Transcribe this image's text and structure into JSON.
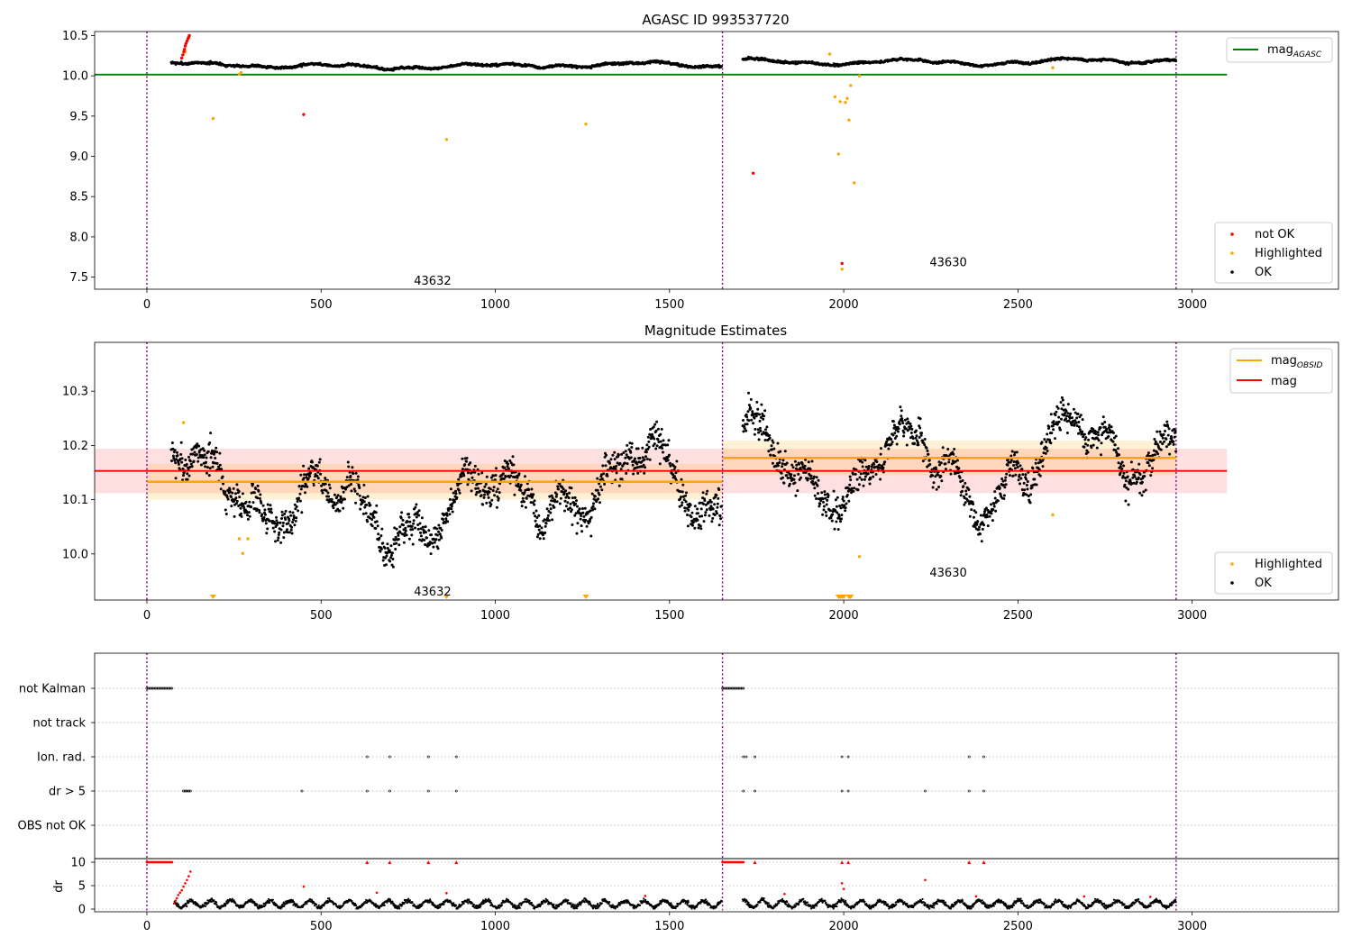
{
  "chart_data": [
    {
      "type": "scatter",
      "title": "AGASC ID 993537720",
      "xlim": [
        -150,
        3420
      ],
      "ylim": [
        7.35,
        10.55
      ],
      "xticks": [
        0,
        500,
        1000,
        1500,
        2000,
        2500,
        3000
      ],
      "yticks": [
        7.5,
        8.0,
        8.5,
        9.0,
        9.5,
        10.0,
        10.5
      ],
      "ytick_labels": [
        "7.5",
        "8.0",
        "8.5",
        "9.0",
        "9.5",
        "10.0",
        "10.5"
      ],
      "obs_boundaries": [
        0,
        1652,
        2954
      ],
      "obs_labels": [
        {
          "text": "43632",
          "x": 820,
          "y": 7.45
        },
        {
          "text": "43630",
          "x": 2300,
          "y": 7.68
        }
      ],
      "line": {
        "name": "mag_AGASC",
        "label_base": "mag",
        "label_sub": "AGASC",
        "value": 10.015,
        "x": [
          -150,
          3100
        ],
        "color": "#008000"
      },
      "ok_segments": [
        {
          "x0": 70,
          "x1": 1650,
          "center": 10.14
        },
        {
          "x0": 1710,
          "x1": 2954,
          "center": 10.18
        }
      ],
      "ok_count": 2300,
      "not_ok": {
        "x": [
          100,
          103,
          106,
          108,
          110,
          112,
          115,
          118,
          120,
          122,
          450,
          1740,
          1995
        ],
        "y": [
          10.22,
          10.26,
          10.3,
          10.33,
          10.37,
          10.4,
          10.43,
          10.46,
          10.48,
          10.5,
          9.52,
          8.79,
          7.67
        ]
      },
      "highlighted": {
        "x": [
          105,
          110,
          190,
          265,
          270,
          860,
          1260,
          1960,
          1975,
          1985,
          1990,
          1995,
          2005,
          2010,
          2015,
          2020,
          2030,
          2045,
          2600
        ],
        "y": [
          10.27,
          10.3,
          9.47,
          10.02,
          10.04,
          9.21,
          9.4,
          10.27,
          9.74,
          9.03,
          9.68,
          7.6,
          9.67,
          9.72,
          9.45,
          9.88,
          8.67,
          10.0,
          10.1
        ]
      },
      "legend": {
        "position": "upper right",
        "line_entry": "mag_AGASC"
      },
      "legend2": {
        "position": "lower right",
        "entries": [
          {
            "name": "not OK",
            "color": "#ff0000"
          },
          {
            "name": "Highlighted",
            "color": "#ffa500"
          },
          {
            "name": "OK",
            "color": "#000000"
          }
        ]
      }
    },
    {
      "type": "scatter",
      "title": "Magnitude Estimates",
      "xlim": [
        -150,
        3420
      ],
      "ylim": [
        9.915,
        10.39
      ],
      "xticks": [
        0,
        500,
        1000,
        1500,
        2000,
        2500,
        3000
      ],
      "yticks": [
        10.0,
        10.1,
        10.2,
        10.3
      ],
      "ytick_labels": [
        "10.0",
        "10.1",
        "10.2",
        "10.3"
      ],
      "obs_boundaries": [
        0,
        1652,
        2954
      ],
      "obs_labels": [
        {
          "text": "43632",
          "x": 820,
          "y": 9.93
        },
        {
          "text": "43630",
          "x": 2300,
          "y": 9.965
        }
      ],
      "mag": {
        "name": "mag",
        "value": 10.153,
        "band": [
          10.112,
          10.194
        ],
        "x": [
          -150,
          3100
        ],
        "color": "#ff0000"
      },
      "mag_obsid": [
        {
          "obsid": "43632",
          "x0": 0,
          "x1": 1652,
          "value": 10.133,
          "band": [
            10.1,
            10.166
          ]
        },
        {
          "obsid": "43630",
          "x0": 1652,
          "x1": 2954,
          "value": 10.177,
          "band": [
            10.145,
            10.209
          ]
        }
      ],
      "highlighted": {
        "x": [
          105,
          265,
          275,
          290,
          2045,
          2600
        ],
        "y": [
          10.242,
          10.028,
          10.001,
          10.028,
          9.995,
          10.072
        ]
      },
      "highlighted_below_axis_x": [
        190,
        860,
        1260,
        1985,
        1990,
        1995,
        2000,
        2015,
        2020
      ],
      "legend": {
        "position": "upper right",
        "entries": [
          {
            "name": "mag_OBSID",
            "label_base": "mag",
            "label_sub": "OBSID",
            "color": "#ffa500"
          },
          {
            "name": "mag",
            "label_base": "mag",
            "label_sub": "",
            "color": "#ff0000"
          }
        ]
      },
      "legend2": {
        "position": "lower right",
        "entries": [
          {
            "name": "Highlighted",
            "color": "#ffa500"
          },
          {
            "name": "OK",
            "color": "#000000"
          }
        ]
      }
    },
    {
      "type": "scatter",
      "xlim": [
        -150,
        3420
      ],
      "xticks": [
        0,
        500,
        1000,
        1500,
        2000,
        2500,
        3000
      ],
      "obs_boundaries": [
        0,
        1652,
        2954
      ],
      "flag_rows": [
        "not Kalman",
        "not track",
        "Ion. rad.",
        "dr > 5",
        "OBS not OK"
      ],
      "flags": {
        "not Kalman": {
          "ranges": [
            [
              0,
              72
            ],
            [
              1652,
              1715
            ]
          ],
          "points": []
        },
        "not track": {
          "ranges": [],
          "points": []
        },
        "Ion. rad.": {
          "ranges": [],
          "points": [
            632,
            697,
            808,
            888,
            1712,
            1720,
            1745,
            1995,
            2013,
            2360,
            2402
          ]
        },
        "dr > 5": {
          "ranges": [
            [
              105,
              125
            ]
          ],
          "points": [
            445,
            632,
            697,
            808,
            888,
            1712,
            1745,
            1995,
            2013,
            2234,
            2360,
            2402
          ]
        },
        "OBS not OK": {
          "ranges": [],
          "points": []
        }
      },
      "dr_panel": {
        "ylabel": "dr",
        "ylim": [
          -0.5,
          10.5
        ],
        "yticks": [
          0,
          5,
          10
        ],
        "ytick_labels": [
          "0",
          "5",
          "10"
        ],
        "red_at_10_ranges": [
          [
            0,
            72
          ],
          [
            1652,
            1715
          ]
        ],
        "red_at_10_points": [
          632,
          697,
          808,
          888,
          1745,
          1995,
          2013,
          2360,
          2402
        ],
        "red_points": {
          "x": [
            78,
            82,
            86,
            90,
            95,
            100,
            105,
            110,
            115,
            120,
            125,
            450,
            660,
            860,
            1430,
            1830,
            1995,
            2000,
            2234,
            2380,
            2690,
            2880
          ],
          "y": [
            1.2,
            1.8,
            2.3,
            3.0,
            3.5,
            4.0,
            4.8,
            5.5,
            6.2,
            7.0,
            8.0,
            4.8,
            3.5,
            3.4,
            2.8,
            3.2,
            5.5,
            4.3,
            6.2,
            2.7,
            2.7,
            2.6
          ]
        }
      }
    }
  ]
}
